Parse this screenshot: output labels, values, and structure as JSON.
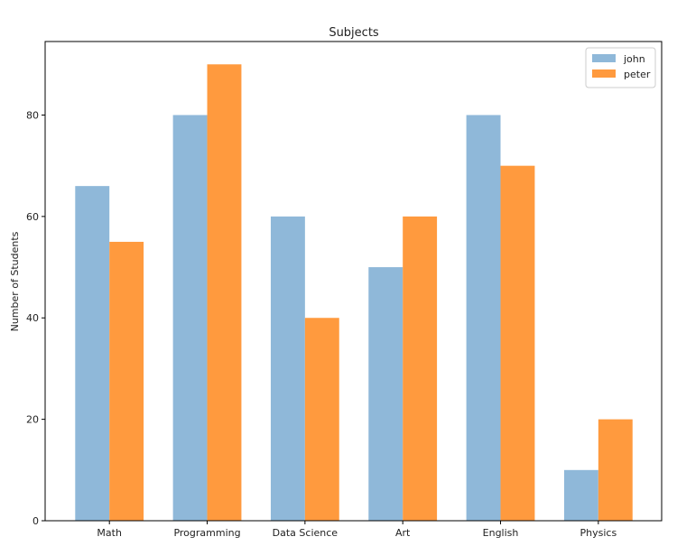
{
  "chart_data": {
    "type": "bar",
    "title": "Subjects",
    "xlabel": "",
    "ylabel": "Number of Students",
    "categories": [
      "Math",
      "Programming",
      "Data Science",
      "Art",
      "English",
      "Physics"
    ],
    "series": [
      {
        "name": "john",
        "values": [
          66,
          80,
          60,
          50,
          80,
          10
        ],
        "color": "#8fb8d9"
      },
      {
        "name": "peter",
        "values": [
          55,
          90,
          40,
          60,
          70,
          20
        ],
        "color": "#ff9a3e"
      }
    ],
    "ylim": [
      0,
      94.5
    ],
    "yticks": [
      0,
      20,
      40,
      60,
      80
    ],
    "grid": false,
    "legend_position": "top-right"
  }
}
